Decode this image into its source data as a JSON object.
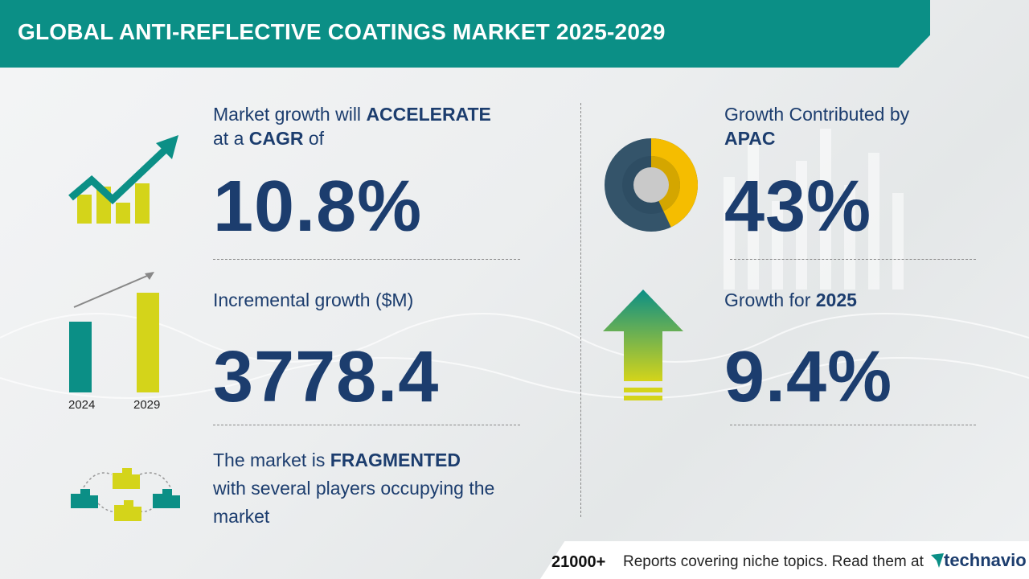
{
  "header": {
    "title": "GLOBAL ANTI-REFLECTIVE COATINGS MARKET 2025-2029"
  },
  "cagr": {
    "line1_prefix": "Market growth will ",
    "line1_emph": "ACCELERATE",
    "line2_prefix": "at a ",
    "line2_emph": "CAGR",
    "line2_suffix": " of",
    "value": "10.8%"
  },
  "incremental": {
    "label": "Incremental growth ($M)",
    "value": "3778.4",
    "bar_years": [
      "2024",
      "2029"
    ]
  },
  "fragmented": {
    "line1_prefix": "The market is ",
    "line1_emph": "FRAGMENTED",
    "line2": "with several players occupying the",
    "line3": "market"
  },
  "region": {
    "line1": "Growth Contributed by",
    "line2": "APAC",
    "value": "43%",
    "share": 0.43
  },
  "yoy": {
    "label_prefix": "Growth for ",
    "label_year": "2025",
    "value": "9.4%"
  },
  "footer": {
    "count": "21000+",
    "text": "Reports covering niche topics. Read them at",
    "logo": "technavio"
  },
  "colors": {
    "teal": "#0b8f86",
    "navy": "#1c3d6e",
    "lime": "#d4d41a",
    "gold": "#f5bd00",
    "slate": "#34546a"
  }
}
